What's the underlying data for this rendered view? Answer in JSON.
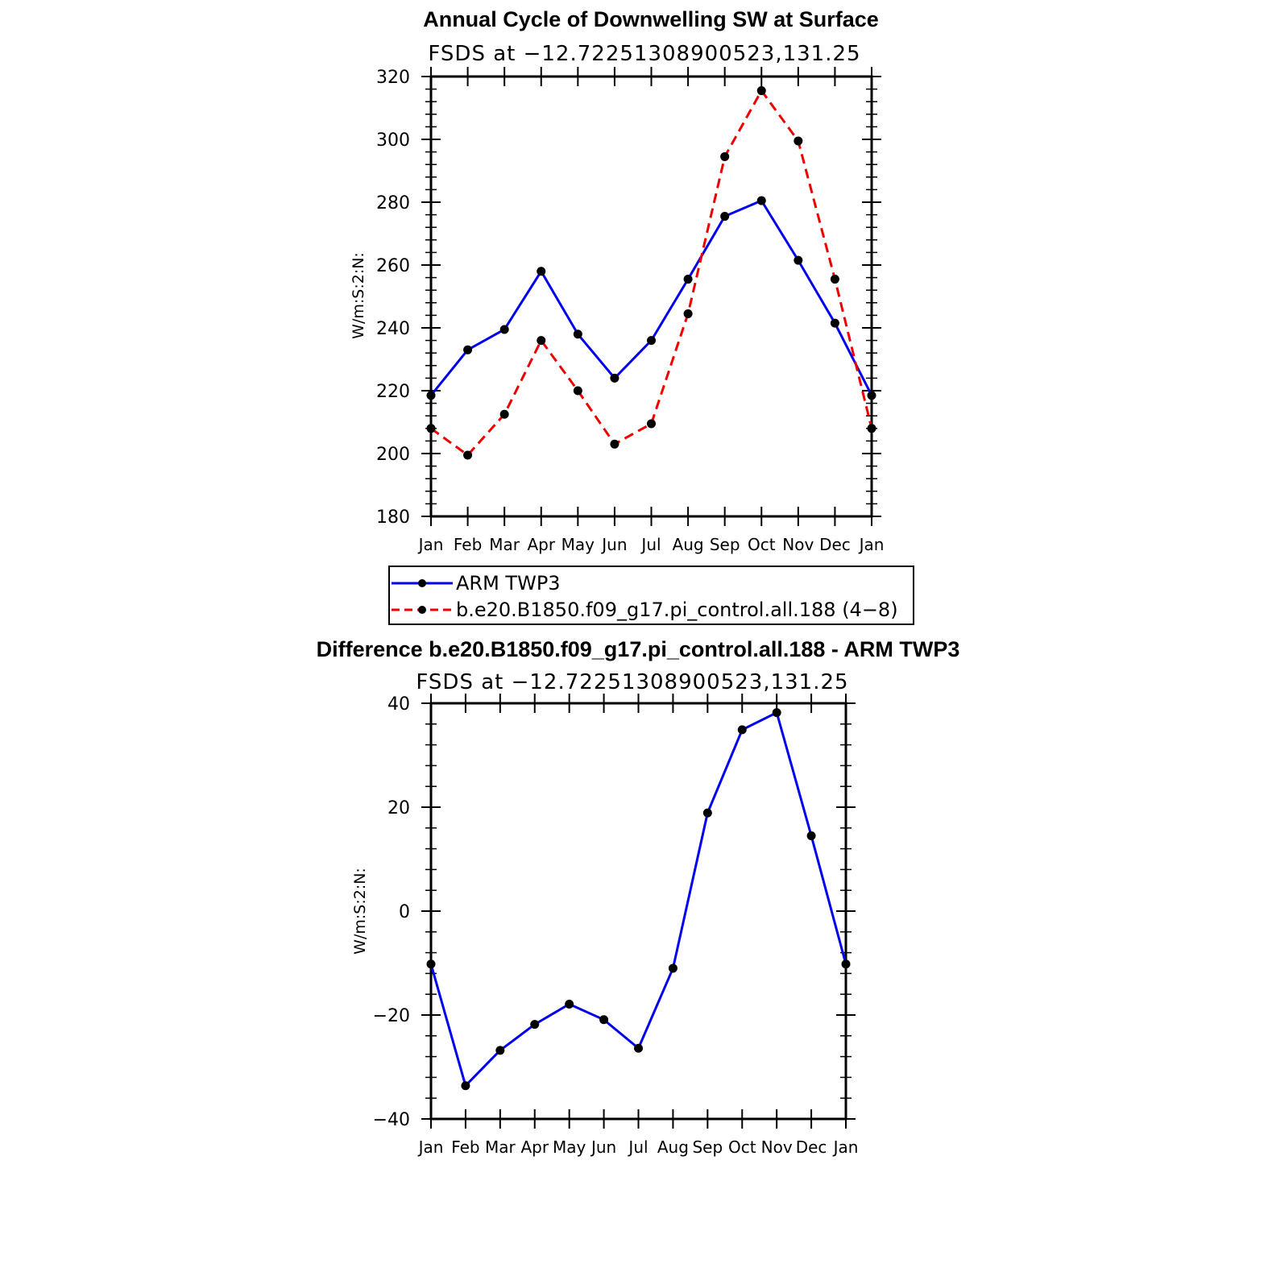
{
  "chart_data": [
    {
      "type": "line",
      "title": "Annual Cycle of Downwelling SW at Surface",
      "subtitle": "FSDS at −12.72251308900523,131.25",
      "ylabel": "W/m:S:2:N:",
      "xlabel": "",
      "categories": [
        "Jan",
        "Feb",
        "Mar",
        "Apr",
        "May",
        "Jun",
        "Jul",
        "Aug",
        "Sep",
        "Oct",
        "Nov",
        "Dec",
        "Jan"
      ],
      "ylim": [
        180,
        320
      ],
      "yticks": [
        "180",
        "200",
        "220",
        "240",
        "260",
        "280",
        "300",
        "320"
      ],
      "series": [
        {
          "name": "ARM TWP3",
          "color": "#0000ee",
          "dash": "solid",
          "values": [
            218.5,
            233.0,
            239.5,
            258.0,
            238.0,
            224.0,
            236.0,
            255.5,
            275.5,
            280.5,
            261.5,
            241.5,
            218.5
          ]
        },
        {
          "name": "b.e20.B1850.f09_g17.pi_control.all.188 (4−8)",
          "color": "#ee0000",
          "dash": "dashed",
          "values": [
            208.0,
            199.5,
            212.5,
            236.0,
            220.0,
            203.0,
            209.5,
            244.5,
            294.5,
            315.5,
            299.5,
            255.5,
            208.0
          ]
        }
      ],
      "legend_position": "bottom"
    },
    {
      "type": "line",
      "title": "Difference b.e20.B1850.f09_g17.pi_control.all.188 - ARM TWP3",
      "subtitle": "FSDS at −12.72251308900523,131.25",
      "ylabel": "W/m:S:2:N:",
      "xlabel": "",
      "categories": [
        "Jan",
        "Feb",
        "Mar",
        "Apr",
        "May",
        "Jun",
        "Jul",
        "Aug",
        "Sep",
        "Oct",
        "Nov",
        "Dec",
        "Jan"
      ],
      "ylim": [
        -40,
        40
      ],
      "yticks": [
        "−40",
        "−20",
        "0",
        "20",
        "40"
      ],
      "series": [
        {
          "color": "#0000ee",
          "dash": "solid",
          "values": [
            -10.2,
            -33.6,
            -26.8,
            -21.8,
            -17.9,
            -20.9,
            -26.4,
            -11.0,
            18.9,
            34.9,
            38.2,
            14.5,
            -10.2
          ]
        }
      ]
    }
  ]
}
